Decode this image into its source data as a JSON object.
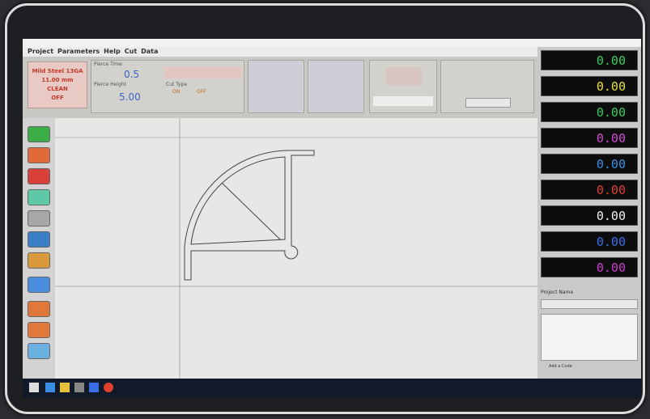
{
  "menu": [
    "Project",
    "Parameters",
    "Help",
    "Cut",
    "Data"
  ],
  "material": [
    "Mild Steel 13GA",
    "11.00 mm",
    "CLEAN",
    "OFF"
  ],
  "pierce_time": {
    "label": "Pierce Time",
    "value": "0.5"
  },
  "pierce_height": {
    "label": "Pierce Height",
    "value": "5.00"
  },
  "cut_type": {
    "label": "Cut Type",
    "options": [
      "ON",
      "OFF"
    ]
  },
  "readouts": [
    {
      "value": "0.00",
      "color": "#39d05a"
    },
    {
      "value": "0.00",
      "color": "#e6e03a"
    },
    {
      "value": "0.00",
      "color": "#39d05a"
    },
    {
      "value": "0.00",
      "color": "#d04ad6"
    },
    {
      "value": "0.00",
      "color": "#3a8ee6"
    },
    {
      "value": "0.00",
      "color": "#e04030"
    },
    {
      "value": "0.00",
      "color": "#f0f0f0"
    },
    {
      "value": "0.00",
      "color": "#3a6ee6"
    },
    {
      "value": "0.00",
      "color": "#d03ad0"
    }
  ],
  "project_name": "Project Name",
  "add_code": "Add a Code"
}
